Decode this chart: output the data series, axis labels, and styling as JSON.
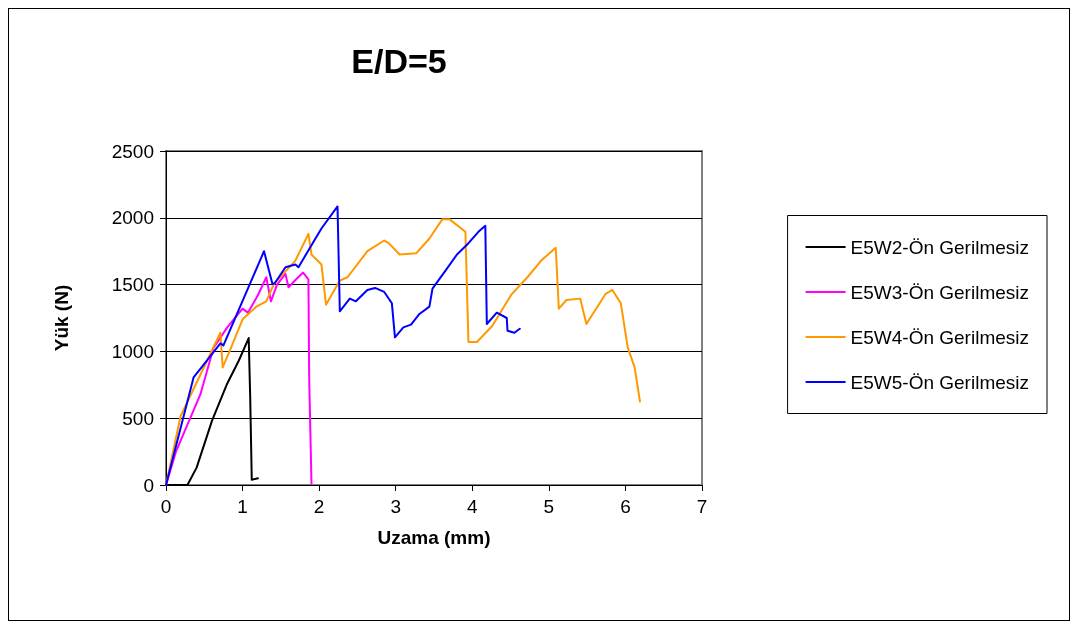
{
  "chart_data": {
    "type": "line",
    "title": "E/D=5",
    "xlabel": "Uzama (mm)",
    "ylabel": "Yük (N)",
    "xlim": [
      0,
      7
    ],
    "xticks": [
      0,
      1,
      2,
      3,
      4,
      5,
      6,
      7
    ],
    "ylim": [
      0,
      2500
    ],
    "yticks": [
      0,
      500,
      1000,
      1500,
      2000,
      2500
    ],
    "grid": "y",
    "legend": "right",
    "marker": "none",
    "line_style": "solid",
    "series": [
      {
        "name": "E5W2-Ön Gerilmesiz",
        "color": "#000000",
        "x": [
          0,
          0.28,
          0.4,
          0.6,
          0.8,
          0.95,
          1.08,
          1.1,
          1.12,
          1.2
        ],
        "values": [
          0,
          0,
          130,
          480,
          760,
          930,
          1100,
          650,
          40,
          50
        ]
      },
      {
        "name": "E5W3-Ön Gerilmesiz",
        "color": "#ff00ff",
        "x": [
          0,
          0.13,
          0.45,
          0.62,
          0.8,
          1.0,
          1.07,
          1.2,
          1.31,
          1.37,
          1.45,
          1.56,
          1.6,
          1.7,
          1.79,
          1.86,
          1.87,
          1.9
        ],
        "values": [
          0,
          250,
          680,
          1025,
          1180,
          1320,
          1290,
          1420,
          1555,
          1375,
          1500,
          1580,
          1480,
          1540,
          1590,
          1540,
          800,
          10
        ]
      },
      {
        "name": "E5W4-Ön Gerilmesiz",
        "color": "#ff9900",
        "x": [
          0,
          0.19,
          0.71,
          0.74,
          0.83,
          1.0,
          1.18,
          1.31,
          1.41,
          1.69,
          1.86,
          1.9,
          2.03,
          2.09,
          2.27,
          2.37,
          2.63,
          2.85,
          2.91,
          3.05,
          3.27,
          3.44,
          3.61,
          3.7,
          3.91,
          3.95,
          4.06,
          4.26,
          4.51,
          4.72,
          4.9,
          5.09,
          5.13,
          5.23,
          5.41,
          5.49,
          5.74,
          5.83,
          5.94,
          6.03,
          6.12,
          6.19
        ],
        "values": [
          0,
          515,
          1140,
          880,
          1000,
          1240,
          1335,
          1375,
          1505,
          1680,
          1880,
          1725,
          1650,
          1350,
          1530,
          1555,
          1750,
          1830,
          1810,
          1725,
          1735,
          1845,
          1990,
          1990,
          1895,
          1070,
          1070,
          1190,
          1425,
          1555,
          1680,
          1775,
          1320,
          1385,
          1395,
          1205,
          1430,
          1460,
          1360,
          1030,
          880,
          625
        ]
      },
      {
        "name": "E5W5-Ön Gerilmesiz",
        "color": "#0000ff",
        "x": [
          0,
          0.36,
          0.49,
          0.71,
          0.75,
          1.28,
          1.39,
          1.42,
          1.56,
          1.69,
          1.73,
          1.9,
          2.03,
          2.24,
          2.27,
          2.4,
          2.48,
          2.63,
          2.73,
          2.85,
          2.95,
          2.99,
          3.1,
          3.2,
          3.31,
          3.44,
          3.48,
          3.65,
          3.8,
          3.95,
          4.08,
          4.17,
          4.19,
          4.32,
          4.45,
          4.46,
          4.55,
          4.62
        ],
        "values": [
          0,
          805,
          900,
          1060,
          1045,
          1750,
          1505,
          1510,
          1630,
          1650,
          1630,
          1795,
          1920,
          2085,
          1300,
          1395,
          1375,
          1460,
          1475,
          1445,
          1360,
          1105,
          1180,
          1200,
          1280,
          1335,
          1470,
          1605,
          1725,
          1810,
          1895,
          1940,
          1205,
          1290,
          1250,
          1155,
          1140,
          1170
        ]
      }
    ]
  }
}
